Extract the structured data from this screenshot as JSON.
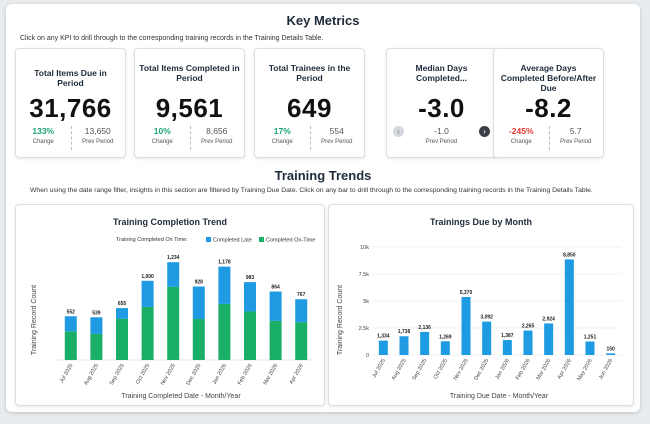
{
  "key_metrics": {
    "title": "Key Metrics",
    "description": "Click on any KPI to drill through to the corresponding training records in the Training Details Table."
  },
  "kpis": [
    {
      "title": "Total Items Due in Period",
      "value": "31,766",
      "change": "133%",
      "change_label": "Change",
      "prev": "13,650",
      "prev_label": "Prev Period",
      "change_color": "green"
    },
    {
      "title": "Total Items Completed in Period",
      "value": "9,561",
      "change": "10%",
      "change_label": "Change",
      "prev": "8,656",
      "prev_label": "Prev Period",
      "change_color": "green"
    },
    {
      "title": "Total Trainees in the Period",
      "value": "649",
      "change": "17%",
      "change_label": "Change",
      "prev": "554",
      "prev_label": "Prev Period",
      "change_color": "green"
    },
    {
      "title": "Median Days Completed...",
      "value": "-3.0",
      "prev": "-1.0",
      "prev_label": "Prev Period"
    },
    {
      "title": "Average Days Completed Before/After Due",
      "value": "-8.2",
      "change": "-245%",
      "change_label": "Change",
      "prev": "5.7",
      "prev_label": "Prev Period",
      "change_color": "red"
    }
  ],
  "training_trends": {
    "title": "Training Trends",
    "description": "When using the date range filter, insights in this section are filtered by Training Due Date. Click on any bar to drill through to the corresponding training records in the Training Details Table."
  },
  "colors": {
    "late": "#1e9be2",
    "ontime": "#1aaf66",
    "bar": "#1e9be2"
  },
  "chart_data": [
    {
      "type": "bar",
      "title": "Training Completion Trend",
      "legend_title": "Training Completed On Time:",
      "xlabel": "Training Completed Date - Month/Year",
      "ylabel": "Training Record Count",
      "categories": [
        "Jul 2025",
        "Aug 2025",
        "Sep 2025",
        "Oct 2025",
        "Nov 2025",
        "Dec 2025",
        "Jan 2026",
        "Feb 2026",
        "Mar 2026",
        "Apr 2026"
      ],
      "totals": [
        552,
        539,
        655,
        1000,
        1234,
        928,
        1178,
        983,
        864,
        767
      ],
      "total_labels": [
        "552",
        "539",
        "655",
        "1,000",
        "1,234",
        "928",
        "1,178",
        "983",
        "864",
        "767"
      ],
      "series": [
        {
          "name": "Completed Late",
          "values": [
            190,
            210,
            135,
            330,
            310,
            410,
            470,
            370,
            370,
            290
          ]
        },
        {
          "name": "Completed On-Time",
          "values": [
            362,
            329,
            520,
            670,
            924,
            518,
            708,
            613,
            494,
            477
          ]
        }
      ],
      "ylim": [
        0,
        1300
      ]
    },
    {
      "type": "bar",
      "title": "Trainings Due by Month",
      "xlabel": "Training Due Date - Month/Year",
      "ylabel": "Training Record Count",
      "categories": [
        "Jul 2025",
        "Aug 2025",
        "Sep 2025",
        "Oct 2025",
        "Nov 2025",
        "Dec 2025",
        "Jan 2026",
        "Feb 2026",
        "Mar 2026",
        "Apr 2026",
        "May 2026",
        "Jun 2026"
      ],
      "values": [
        1334,
        1738,
        2136,
        1269,
        5370,
        3092,
        1387,
        2265,
        2924,
        8850,
        1251,
        150
      ],
      "value_labels": [
        "1,334",
        "1,738",
        "2,136",
        "1,269",
        "5,370",
        "3,092",
        "1,387",
        "2,265",
        "2,924",
        "8,850",
        "1,251",
        "150"
      ],
      "yticks": [
        "0",
        "2.5k",
        "5k",
        "7.5k",
        "10k"
      ],
      "ylim": [
        0,
        10000
      ]
    }
  ]
}
